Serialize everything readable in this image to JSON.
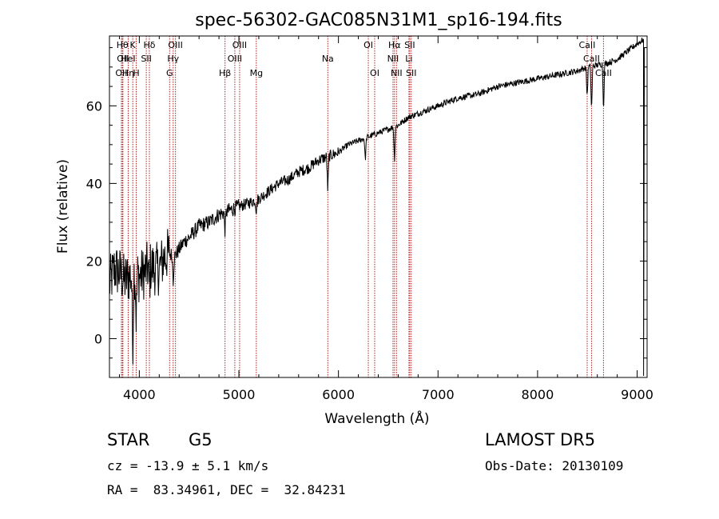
{
  "chart_data": {
    "type": "line",
    "title": "spec-56302-GAC085N31M1_sp16-194.fits",
    "xlabel": "Wavelength (Å)",
    "ylabel": "Flux (relative)",
    "xlim": [
      3700,
      9100
    ],
    "ylim": [
      -10,
      78
    ],
    "xticks": [
      4000,
      5000,
      6000,
      7000,
      8000,
      9000
    ],
    "yticks": [
      0,
      20,
      40,
      60
    ],
    "grid": false,
    "line_color": "#000000",
    "marker_color": "#b22222",
    "spectrum_anchors": [
      [
        3700,
        14
      ],
      [
        3750,
        18
      ],
      [
        3800,
        17
      ],
      [
        3850,
        15
      ],
      [
        3900,
        16
      ],
      [
        3950,
        17
      ],
      [
        4000,
        16
      ],
      [
        4050,
        17
      ],
      [
        4100,
        19
      ],
      [
        4150,
        18
      ],
      [
        4200,
        18
      ],
      [
        4250,
        21
      ],
      [
        4300,
        22
      ],
      [
        4350,
        21
      ],
      [
        4400,
        23
      ],
      [
        4450,
        25
      ],
      [
        4500,
        26
      ],
      [
        4600,
        29
      ],
      [
        4700,
        30
      ],
      [
        4800,
        32
      ],
      [
        4900,
        33
      ],
      [
        5000,
        34
      ],
      [
        5100,
        35
      ],
      [
        5200,
        36
      ],
      [
        5300,
        38
      ],
      [
        5400,
        40
      ],
      [
        5500,
        41
      ],
      [
        5600,
        43
      ],
      [
        5700,
        44
      ],
      [
        5800,
        46
      ],
      [
        5900,
        47
      ],
      [
        6000,
        48
      ],
      [
        6100,
        50
      ],
      [
        6200,
        51
      ],
      [
        6300,
        52
      ],
      [
        6400,
        53
      ],
      [
        6500,
        54
      ],
      [
        6600,
        55
      ],
      [
        6700,
        57
      ],
      [
        6800,
        58
      ],
      [
        6900,
        59
      ],
      [
        7000,
        60
      ],
      [
        7200,
        62
      ],
      [
        7400,
        63
      ],
      [
        7600,
        65
      ],
      [
        7800,
        66
      ],
      [
        8000,
        67
      ],
      [
        8200,
        68
      ],
      [
        8400,
        69
      ],
      [
        8500,
        70
      ],
      [
        8700,
        71
      ],
      [
        8800,
        72
      ],
      [
        8900,
        74
      ],
      [
        9000,
        76
      ],
      [
        9060,
        77
      ]
    ],
    "absorption_features": [
      {
        "x": 3934,
        "depth": 20
      },
      {
        "x": 3969,
        "depth": 12
      },
      {
        "x": 4101,
        "depth": 6
      },
      {
        "x": 4340,
        "depth": 6
      },
      {
        "x": 4861,
        "depth": 5
      },
      {
        "x": 5175,
        "depth": 3
      },
      {
        "x": 5893,
        "depth": 9
      },
      {
        "x": 6270,
        "depth": 6
      },
      {
        "x": 6563,
        "depth": 9
      },
      {
        "x": 8498,
        "depth": 8
      },
      {
        "x": 8542,
        "depth": 12
      },
      {
        "x": 8662,
        "depth": 12
      }
    ],
    "line_markers": [
      {
        "x": 3830,
        "label": "Hθ",
        "row": 0
      },
      {
        "x": 3835,
        "label": "OII",
        "row": 1
      },
      {
        "x": 3820,
        "label": "OII",
        "row": 2
      },
      {
        "x": 3889,
        "label": "Hη",
        "row": 2
      },
      {
        "x": 3934,
        "label": "K",
        "row": 0
      },
      {
        "x": 3888,
        "label": "HeI",
        "row": 1
      },
      {
        "x": 3969,
        "label": "H",
        "row": 2
      },
      {
        "x": 4101,
        "label": "Hδ",
        "row": 0
      },
      {
        "x": 4070,
        "label": "SII",
        "row": 1
      },
      {
        "x": 4363,
        "label": "OIII",
        "row": 0
      },
      {
        "x": 4340,
        "label": "Hγ",
        "row": 1
      },
      {
        "x": 4304,
        "label": "G",
        "row": 2
      },
      {
        "x": 5007,
        "label": "OIII",
        "row": 0
      },
      {
        "x": 4959,
        "label": "OIII",
        "row": 1
      },
      {
        "x": 4861,
        "label": "Hβ",
        "row": 2
      },
      {
        "x": 5175,
        "label": "Mg",
        "row": 2
      },
      {
        "x": 5893,
        "label": "Na",
        "row": 1
      },
      {
        "x": 6300,
        "label": "OI",
        "row": 0
      },
      {
        "x": 6364,
        "label": "OI",
        "row": 2
      },
      {
        "x": 6563,
        "label": "Hα",
        "row": 0
      },
      {
        "x": 6548,
        "label": "NII",
        "row": 1
      },
      {
        "x": 6583,
        "label": "NII",
        "row": 2
      },
      {
        "x": 6716,
        "label": "SII",
        "row": 0
      },
      {
        "x": 6708,
        "label": "Li",
        "row": 1
      },
      {
        "x": 6731,
        "label": "SII",
        "row": 2
      },
      {
        "x": 8498,
        "label": "CaII",
        "row": 0
      },
      {
        "x": 8542,
        "label": "CaII",
        "row": 1
      },
      {
        "x": 8662,
        "label": "CaII",
        "row": 2
      }
    ]
  },
  "info": {
    "object_class": "STAR",
    "subclass": "G5",
    "survey": "LAMOST DR5",
    "redshift": "cz = -13.9 ± 5.1 km/s",
    "obs_date": "Obs-Date: 20130109",
    "coords": "RA =  83.34961, DEC =  32.84231"
  }
}
